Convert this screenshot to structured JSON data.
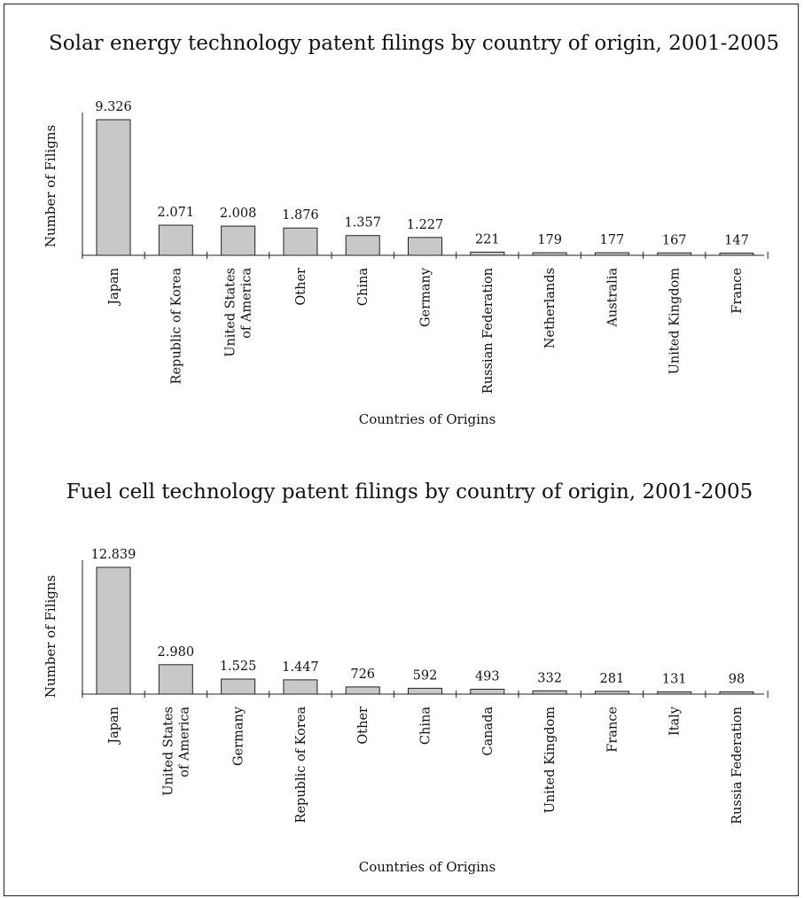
{
  "chart_data": [
    {
      "type": "bar",
      "title": "Solar energy technology patent filings by country of origin, 2001-2005",
      "xlabel": "Countries of Origins",
      "ylabel": "Number of Filigns",
      "categories": [
        [
          "Japan"
        ],
        [
          "Republic of Korea"
        ],
        [
          "United States",
          "of America"
        ],
        [
          "Other"
        ],
        [
          "China"
        ],
        [
          "Germany"
        ],
        [
          "Russian Federation"
        ],
        [
          "Netherlands"
        ],
        [
          "Australia"
        ],
        [
          "United Kingdom"
        ],
        [
          "France"
        ]
      ],
      "values": [
        9326,
        2071,
        2008,
        1876,
        1357,
        1227,
        221,
        179,
        177,
        167,
        147
      ],
      "value_labels": [
        "9.326",
        "2.071",
        "2.008",
        "1.876",
        "1.357",
        "1.227",
        "221",
        "179",
        "177",
        "167",
        "147"
      ],
      "bar_color": "#c8c8c8",
      "grid": false
    },
    {
      "type": "bar",
      "title": "Fuel cell technology patent filings by country of origin, 2001-2005",
      "xlabel": "Countries of Origins",
      "ylabel": "Number of Filigns",
      "categories": [
        [
          "Japan"
        ],
        [
          "United States",
          "of America"
        ],
        [
          "Germany"
        ],
        [
          "Republic of Korea"
        ],
        [
          "Other"
        ],
        [
          "China"
        ],
        [
          "Canada"
        ],
        [
          "United Kingdom"
        ],
        [
          "France"
        ],
        [
          "Italy"
        ],
        [
          "Russia Federation"
        ]
      ],
      "values": [
        12839,
        2980,
        1525,
        1447,
        726,
        592,
        493,
        332,
        281,
        131,
        98
      ],
      "value_labels": [
        "12.839",
        "2.980",
        "1.525",
        "1.447",
        "726",
        "592",
        "493",
        "332",
        "281",
        "131",
        "98"
      ],
      "bar_color": "#c8c8c8",
      "grid": false
    }
  ]
}
